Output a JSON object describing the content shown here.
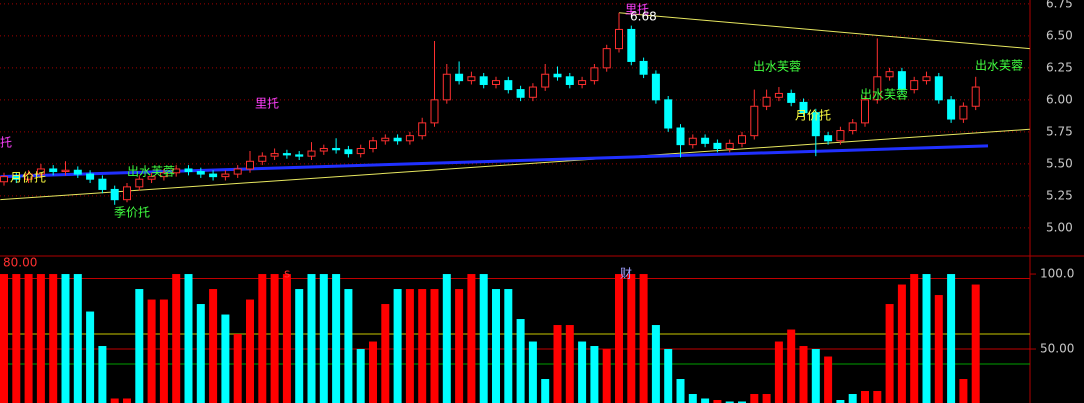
{
  "chart_data": [
    {
      "type": "candlestick",
      "ylim": [
        4.78,
        6.78
      ],
      "yticks": [
        {
          "value": 5,
          "label": "5.00"
        },
        {
          "value": 5.25,
          "label": "5.25"
        },
        {
          "value": 5.5,
          "label": "5.50"
        },
        {
          "value": 5.75,
          "label": "5.75"
        },
        {
          "value": 6,
          "label": "6.00"
        },
        {
          "value": 6.25,
          "label": "6.25"
        },
        {
          "value": 6.5,
          "label": "6.50"
        },
        {
          "value": 6.75,
          "label": "6.75"
        }
      ],
      "grid": true,
      "up_color": "#ff3030",
      "down_color": "#00ffff",
      "open": [
        5.36,
        5.4,
        5.38,
        5.42,
        5.46,
        5.44,
        5.45,
        5.42,
        5.38,
        5.3,
        5.22,
        5.32,
        5.38,
        5.4,
        5.43,
        5.46,
        5.44,
        5.42,
        5.4,
        5.42,
        5.46,
        5.52,
        5.56,
        5.58,
        5.57,
        5.56,
        5.6,
        5.62,
        5.61,
        5.58,
        5.62,
        5.68,
        5.7,
        5.68,
        5.72,
        5.82,
        6.0,
        6.2,
        6.15,
        6.18,
        6.12,
        6.15,
        6.08,
        6.02,
        6.1,
        6.2,
        6.18,
        6.12,
        6.15,
        6.25,
        6.4,
        6.55,
        6.3,
        6.2,
        6.0,
        5.78,
        5.65,
        5.7,
        5.66,
        5.62,
        5.66,
        5.72,
        5.95,
        6.02,
        6.05,
        5.98,
        5.9,
        5.72,
        5.68,
        5.76,
        5.82,
        6.0,
        6.18,
        6.22,
        6.08,
        6.15,
        6.18,
        6.0,
        5.85,
        5.95
      ],
      "high": [
        5.43,
        5.43,
        5.45,
        5.5,
        5.49,
        5.52,
        5.48,
        5.45,
        5.41,
        5.33,
        5.35,
        5.41,
        5.43,
        5.46,
        5.49,
        5.49,
        5.47,
        5.45,
        5.45,
        5.49,
        5.6,
        5.59,
        5.62,
        5.61,
        5.6,
        5.67,
        5.65,
        5.7,
        5.64,
        5.65,
        5.71,
        5.73,
        5.73,
        5.75,
        5.86,
        6.46,
        6.28,
        6.3,
        6.22,
        6.21,
        6.18,
        6.18,
        6.11,
        6.13,
        6.28,
        6.26,
        6.21,
        6.18,
        6.28,
        6.43,
        6.68,
        6.58,
        6.33,
        6.23,
        6.03,
        5.81,
        5.73,
        5.73,
        5.69,
        5.69,
        5.75,
        6.08,
        6.08,
        6.1,
        6.08,
        6.01,
        5.93,
        5.75,
        5.79,
        5.85,
        6.03,
        6.48,
        6.25,
        6.25,
        6.18,
        6.22,
        6.21,
        6.03,
        5.98,
        6.18
      ],
      "low": [
        5.33,
        5.35,
        5.35,
        5.39,
        5.41,
        5.41,
        5.39,
        5.35,
        5.27,
        5.18,
        5.2,
        5.29,
        5.35,
        5.37,
        5.4,
        5.41,
        5.39,
        5.37,
        5.37,
        5.39,
        5.43,
        5.49,
        5.53,
        5.54,
        5.53,
        5.53,
        5.57,
        5.58,
        5.55,
        5.55,
        5.59,
        5.65,
        5.65,
        5.65,
        5.69,
        5.79,
        5.97,
        6.12,
        6.12,
        6.09,
        6.09,
        6.05,
        5.99,
        5.99,
        6.07,
        6.15,
        6.09,
        6.09,
        6.12,
        6.22,
        6.37,
        6.27,
        6.17,
        5.97,
        5.75,
        5.55,
        5.62,
        5.63,
        5.59,
        5.59,
        5.63,
        5.69,
        5.92,
        5.99,
        5.95,
        5.87,
        5.56,
        5.65,
        5.65,
        5.73,
        5.79,
        5.97,
        6.15,
        6.05,
        6.05,
        6.12,
        5.97,
        5.82,
        5.82,
        5.92
      ],
      "close": [
        5.4,
        5.38,
        5.42,
        5.46,
        5.44,
        5.45,
        5.42,
        5.38,
        5.3,
        5.22,
        5.32,
        5.38,
        5.4,
        5.43,
        5.46,
        5.44,
        5.42,
        5.4,
        5.42,
        5.46,
        5.52,
        5.56,
        5.58,
        5.57,
        5.56,
        5.6,
        5.62,
        5.61,
        5.58,
        5.62,
        5.68,
        5.7,
        5.68,
        5.72,
        5.82,
        6.0,
        6.2,
        6.15,
        6.18,
        6.12,
        6.15,
        6.08,
        6.02,
        6.1,
        6.2,
        6.18,
        6.12,
        6.15,
        6.25,
        6.4,
        6.55,
        6.3,
        6.2,
        6.0,
        5.78,
        5.65,
        5.7,
        5.66,
        5.62,
        5.66,
        5.72,
        5.95,
        6.02,
        6.05,
        5.98,
        5.9,
        5.72,
        5.68,
        5.76,
        5.82,
        6.0,
        6.18,
        6.22,
        6.08,
        6.15,
        6.18,
        6.0,
        5.85,
        5.95,
        6.1
      ],
      "trend_lines": [
        {
          "color": "#e8e860",
          "width": 1,
          "x": [
            50,
            83.4
          ],
          "y": [
            6.68,
            6.4
          ]
        },
        {
          "color": "#e8e860",
          "width": 1,
          "x": [
            -0.3,
            83.4
          ],
          "y": [
            5.22,
            5.77
          ]
        },
        {
          "color": "#2030ff",
          "width": 3,
          "x": [
            -0.3,
            80
          ],
          "y": [
            5.4,
            5.64
          ]
        }
      ]
    },
    {
      "type": "bar",
      "title": "80.00",
      "ylim": [
        14,
        110.7
      ],
      "yticks": [
        {
          "value": 50,
          "label": "50.00"
        },
        {
          "value": 100,
          "label": "100.0"
        }
      ],
      "ref_lines": [
        {
          "value": 97,
          "color": "#c00000"
        },
        {
          "value": 60,
          "color": "#c8c800"
        },
        {
          "value": 50,
          "color": "#c00000"
        },
        {
          "value": 40,
          "color": "#00a000"
        }
      ],
      "values": [
        100,
        100,
        100,
        100,
        100,
        100,
        100,
        75,
        52,
        17,
        17,
        90,
        83,
        83,
        100,
        100,
        80,
        90,
        73,
        60,
        83,
        100,
        100,
        100,
        90,
        100,
        100,
        100,
        90,
        50,
        55,
        80,
        90,
        90,
        90,
        90,
        100,
        90,
        100,
        100,
        90,
        90,
        70,
        55,
        30,
        66,
        66,
        55,
        52,
        50,
        100,
        100,
        100,
        66,
        50,
        30,
        20,
        17,
        16,
        15,
        15,
        20,
        20,
        55,
        63,
        52,
        50,
        45,
        16,
        20,
        22,
        22,
        80,
        93,
        100,
        100,
        86,
        100,
        30,
        93
      ],
      "colors": [
        "#ff0000",
        "#ff0000",
        "#ff0000",
        "#ff0000",
        "#ff0000",
        "#00ffff",
        "#00ffff",
        "#00ffff",
        "#00ffff",
        "#ff0000",
        "#ff0000",
        "#00ffff",
        "#ff0000",
        "#ff0000",
        "#ff0000",
        "#00ffff",
        "#00ffff",
        "#ff0000",
        "#00ffff",
        "#ff0000",
        "#ff0000",
        "#ff0000",
        "#ff0000",
        "#ff0000",
        "#00ffff",
        "#00ffff",
        "#00ffff",
        "#00ffff",
        "#00ffff",
        "#00ffff",
        "#ff0000",
        "#ff0000",
        "#00ffff",
        "#ff0000",
        "#ff0000",
        "#ff0000",
        "#00ffff",
        "#ff0000",
        "#ff0000",
        "#00ffff",
        "#00ffff",
        "#00ffff",
        "#00ffff",
        "#00ffff",
        "#00ffff",
        "#ff0000",
        "#ff0000",
        "#00ffff",
        "#00ffff",
        "#ff0000",
        "#ff0000",
        "#ff0000",
        "#ff0000",
        "#00ffff",
        "#00ffff",
        "#00ffff",
        "#00ffff",
        "#00ffff",
        "#ff0000",
        "#00ffff",
        "#00ffff",
        "#ff0000",
        "#ff0000",
        "#ff0000",
        "#ff0000",
        "#ff0000",
        "#00ffff",
        "#ff0000",
        "#00ffff",
        "#00ffff",
        "#ff0000",
        "#ff0000",
        "#ff0000",
        "#ff0000",
        "#ff0000",
        "#00ffff",
        "#ff0000",
        "#00ffff",
        "#ff0000",
        "#ff0000"
      ]
    }
  ],
  "annotations": [
    "托",
    "月价托",
    "季价托",
    "出水芙蓉",
    "里托",
    "里托",
    "6.68",
    "出水芙蓉",
    "月价托",
    "出水芙蓉",
    "出水芙蓉",
    "s",
    "财"
  ]
}
